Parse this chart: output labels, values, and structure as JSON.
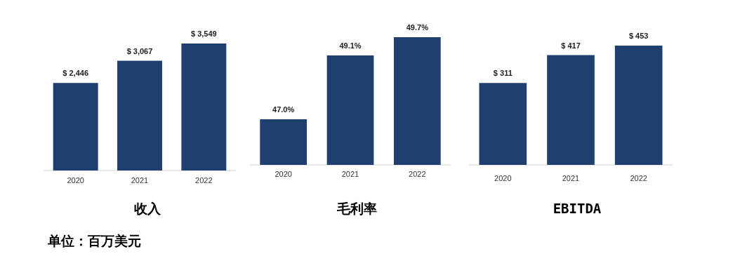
{
  "chart_data": [
    {
      "type": "bar",
      "title": "收入",
      "categories": [
        "2020",
        "2021",
        "2022"
      ],
      "values": [
        2446,
        3067,
        3549
      ],
      "value_labels": [
        "$ 2,446",
        "$ 3,067",
        "$ 3,549"
      ],
      "color": "#1f3f6e",
      "tick_labels": "x",
      "annotations": [
        "单位：百万美元"
      ]
    },
    {
      "type": "bar",
      "title": "毛利率",
      "categories": [
        "2020",
        "2021",
        "2022"
      ],
      "values": [
        47.0,
        49.1,
        49.7
      ],
      "value_labels": [
        "47.0%",
        "49.1%",
        "49.7%"
      ],
      "color": "#1f3f6e",
      "ylim": [
        45.5,
        49.7
      ],
      "tick_labels": "x"
    },
    {
      "type": "bar",
      "title": "EBITDA",
      "categories": [
        "2020",
        "2021",
        "2022"
      ],
      "values": [
        311,
        417,
        453
      ],
      "value_labels": [
        "$ 311",
        "$ 417",
        "$ 453"
      ],
      "color": "#1f3f6e",
      "tick_labels": "x"
    }
  ]
}
